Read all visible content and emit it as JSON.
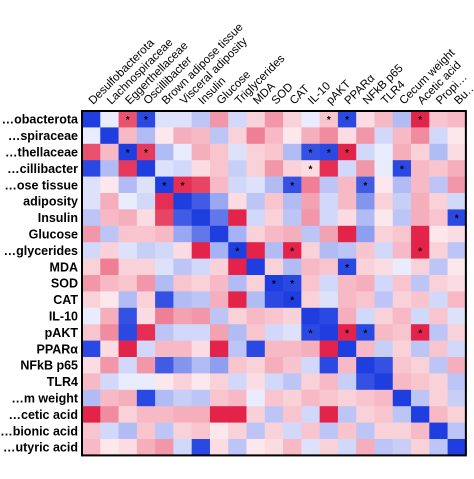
{
  "chart_data": {
    "type": "heatmap",
    "title": "",
    "xlabel": "",
    "ylabel": "",
    "row_labels": [
      "…obacterota",
      "…spiraceae",
      "…thellaceae",
      "…cillibacter",
      "…ose tissue",
      "adiposity",
      "Insulin",
      "Glucose",
      "…glycerides",
      "MDA",
      "SOD",
      "CAT",
      "IL-10",
      "pAKT",
      "PPARα",
      "NFkB p65",
      "TLR4",
      "…m weight",
      "…cetic acid",
      "…bionic acid",
      "…utyric acid"
    ],
    "col_labels": [
      "Desulfobacterota",
      "Lachnospiraceae",
      "Eggerthellaceae",
      "Oscillibacter",
      "Brown adipose tissue",
      "Visceral adiposity",
      "Insulin",
      "Glucose",
      "Triglycerides",
      "MDA",
      "SOD",
      "CAT",
      "IL-10",
      "pAKT",
      "PPARα",
      "NFkB p65",
      "TLR4",
      "Cecum weight",
      "Acetic acid",
      "Propi…",
      "Bu…"
    ],
    "value_range": [
      -1,
      1
    ],
    "colors": {
      "negative": "#1f3ee0",
      "neutral": "#ffffff",
      "positive": "#e2173f",
      "border": "#000000"
    },
    "values": [
      [
        -1,
        -0.1,
        0.75,
        -0.95,
        -0.15,
        -0.15,
        -0.3,
        0.45,
        -0.2,
        0.2,
        0.45,
        0.2,
        -0.1,
        0.25,
        -0.95,
        0.15,
        0.3,
        -0.35,
        0.95,
        0.25,
        0.3
      ],
      [
        -0.1,
        -1,
        0.3,
        -0.35,
        0.1,
        0.35,
        0.3,
        -0.3,
        0.2,
        0.55,
        0.3,
        0.1,
        0.35,
        0.5,
        0.15,
        0.45,
        -0.2,
        0.3,
        0.5,
        -0.2,
        0.1
      ],
      [
        0.75,
        0.3,
        -1,
        0.85,
        -0.35,
        -0.1,
        0.35,
        0.25,
        -0.15,
        0.2,
        0.25,
        -0.35,
        -0.9,
        -0.95,
        0.95,
        -0.2,
        -0.1,
        0.35,
        0.2,
        -0.35,
        0.15
      ],
      [
        -0.95,
        -0.35,
        0.85,
        -1,
        -0.15,
        -0.2,
        0.15,
        0.25,
        -0.25,
        0.2,
        0.45,
        0.2,
        0.15,
        0.9,
        -0.2,
        0.45,
        -0.1,
        -0.95,
        0.3,
        0.25,
        0.35
      ],
      [
        -0.15,
        0.1,
        -0.35,
        -0.15,
        -1,
        0.9,
        0.8,
        0.3,
        -0.2,
        -0.15,
        -0.35,
        -0.9,
        0.55,
        -0.3,
        0.3,
        -0.85,
        0.1,
        -0.35,
        0.3,
        -0.3,
        0.45
      ],
      [
        -0.15,
        0.35,
        -0.1,
        -0.2,
        0.9,
        -1,
        -0.85,
        -0.45,
        0.15,
        -0.3,
        0.25,
        -0.35,
        0.4,
        -0.2,
        0.3,
        -0.55,
        0.2,
        -0.25,
        0.35,
        0.2,
        -0.2
      ],
      [
        -0.3,
        0.3,
        0.35,
        0.15,
        0.8,
        -0.85,
        -1,
        -0.7,
        0.95,
        -0.2,
        0.2,
        -0.3,
        0.45,
        -0.2,
        0.15,
        -0.35,
        0.1,
        -0.3,
        0.35,
        0.25,
        -0.95
      ],
      [
        0.45,
        -0.3,
        0.25,
        0.25,
        0.3,
        -0.45,
        -0.7,
        -1,
        -0.4,
        0.2,
        0.3,
        0.35,
        -0.3,
        0.4,
        0.95,
        -0.5,
        0.2,
        0.25,
        0.95,
        0.1,
        0.15
      ],
      [
        -0.2,
        0.2,
        -0.15,
        -0.25,
        -0.2,
        0.15,
        0.95,
        -0.4,
        -1,
        0.95,
        -0.35,
        0.95,
        0.2,
        -0.35,
        -0.3,
        0.25,
        -0.2,
        0.3,
        0.95,
        0.2,
        -0.3
      ],
      [
        0.2,
        0.55,
        0.2,
        0.2,
        -0.15,
        -0.3,
        -0.2,
        0.2,
        0.95,
        -1,
        0.2,
        -0.35,
        0.3,
        0.25,
        -0.95,
        0.2,
        0.15,
        -0.1,
        0.2,
        -0.3,
        0.1
      ],
      [
        0.45,
        0.3,
        0.25,
        0.45,
        -0.35,
        0.25,
        0.2,
        0.3,
        -0.35,
        0.2,
        -1,
        -0.95,
        0.25,
        -0.2,
        0.3,
        0.35,
        -0.2,
        0.25,
        -0.3,
        0.2,
        0.15
      ],
      [
        0.2,
        0.1,
        -0.35,
        0.2,
        -0.9,
        -0.35,
        -0.3,
        0.35,
        0.95,
        -0.35,
        -0.95,
        -1,
        0.2,
        -0.15,
        0.3,
        0.25,
        -0.3,
        0.2,
        0.25,
        -0.2,
        0.3
      ],
      [
        -0.1,
        0.35,
        -0.9,
        0.15,
        0.55,
        0.4,
        0.45,
        -0.3,
        0.2,
        0.3,
        0.25,
        0.2,
        -1,
        -0.95,
        0.35,
        -0.2,
        0.2,
        0.3,
        -0.2,
        0.25,
        -0.15
      ],
      [
        0.25,
        0.5,
        -0.95,
        0.9,
        -0.3,
        -0.2,
        -0.2,
        0.4,
        -0.35,
        0.25,
        -0.2,
        -0.15,
        -0.95,
        -1,
        0.95,
        -0.95,
        0.3,
        0.25,
        0.95,
        -0.3,
        0.2
      ],
      [
        -0.95,
        0.15,
        0.95,
        -0.2,
        0.3,
        0.3,
        0.15,
        0.95,
        -0.3,
        -0.95,
        0.3,
        0.3,
        0.35,
        0.95,
        -1,
        0.3,
        -0.25,
        0.2,
        -0.3,
        0.25,
        -0.2
      ],
      [
        0.15,
        0.45,
        -0.2,
        0.45,
        -0.85,
        -0.55,
        -0.35,
        -0.5,
        0.25,
        0.2,
        0.35,
        0.25,
        -0.2,
        -0.95,
        0.3,
        -1,
        -0.9,
        0.25,
        0.2,
        -0.3,
        0.35
      ],
      [
        0.3,
        -0.2,
        -0.1,
        -0.1,
        0.1,
        0.2,
        0.1,
        0.2,
        -0.2,
        0.15,
        -0.2,
        -0.3,
        0.2,
        0.3,
        -0.25,
        -0.9,
        -1,
        0.3,
        0.25,
        0.2,
        -0.3
      ],
      [
        -0.35,
        0.3,
        0.35,
        -0.95,
        -0.35,
        -0.25,
        -0.3,
        0.25,
        0.3,
        -0.1,
        0.25,
        0.2,
        0.3,
        0.25,
        0.2,
        0.25,
        0.3,
        -1,
        -0.3,
        0.2,
        -0.25
      ],
      [
        0.95,
        0.5,
        0.2,
        0.3,
        0.3,
        0.35,
        0.35,
        0.95,
        0.95,
        0.2,
        -0.3,
        0.25,
        -0.2,
        0.95,
        -0.3,
        0.2,
        0.25,
        -0.3,
        -1,
        0.3,
        0.2
      ],
      [
        0.25,
        -0.2,
        -0.35,
        0.25,
        -0.3,
        0.2,
        0.25,
        0.1,
        0.2,
        -0.3,
        0.2,
        -0.2,
        0.25,
        -0.3,
        0.25,
        -0.3,
        0.2,
        0.2,
        0.3,
        -1,
        -0.3
      ],
      [
        0.3,
        0.1,
        0.15,
        0.35,
        0.45,
        -0.2,
        -0.95,
        0.15,
        -0.3,
        0.1,
        0.15,
        0.3,
        -0.15,
        0.2,
        -0.2,
        0.35,
        -0.3,
        -0.25,
        0.2,
        -0.3,
        -1
      ]
    ],
    "significant": [
      [
        0,
        2
      ],
      [
        0,
        3
      ],
      [
        0,
        13
      ],
      [
        0,
        14
      ],
      [
        0,
        18
      ],
      [
        2,
        2
      ],
      [
        2,
        3
      ],
      [
        2,
        12
      ],
      [
        2,
        13
      ],
      [
        2,
        14
      ],
      [
        3,
        12
      ],
      [
        3,
        17
      ],
      [
        4,
        4
      ],
      [
        4,
        5
      ],
      [
        4,
        11
      ],
      [
        4,
        15
      ],
      [
        6,
        20
      ],
      [
        8,
        8
      ],
      [
        8,
        11
      ],
      [
        8,
        18
      ],
      [
        9,
        14
      ],
      [
        10,
        10
      ],
      [
        10,
        11
      ],
      [
        11,
        11
      ],
      [
        13,
        12
      ],
      [
        13,
        14
      ],
      [
        13,
        15
      ],
      [
        13,
        18
      ]
    ],
    "sig_marker": "*",
    "grid": true,
    "legend": "none"
  }
}
